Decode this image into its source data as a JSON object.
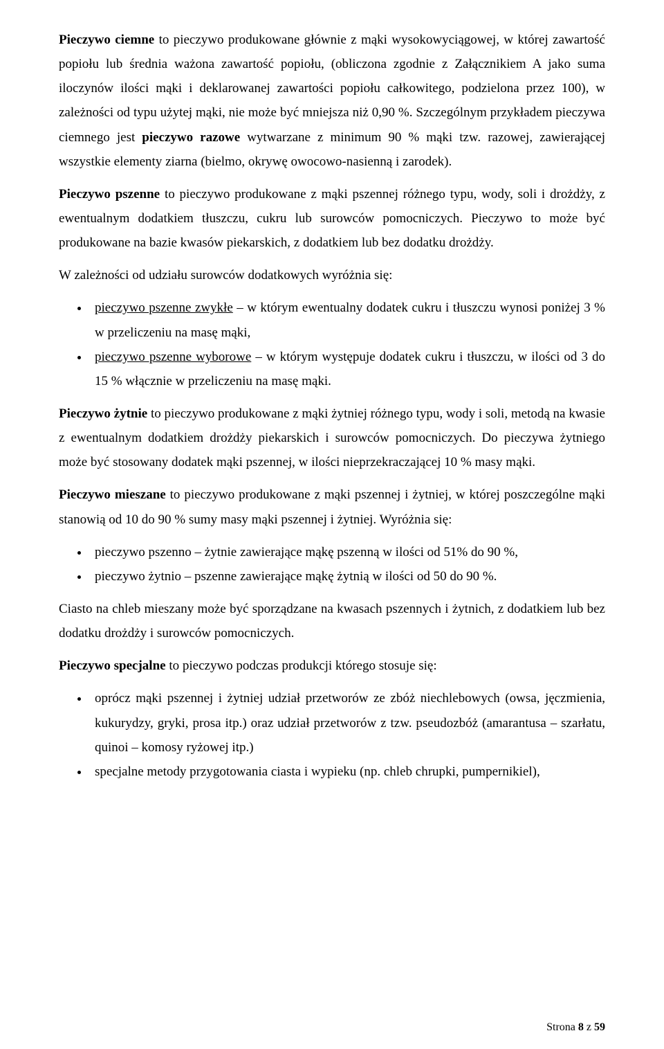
{
  "paragraphs": {
    "p1_a": "Pieczywo ciemne",
    "p1_b": " to pieczywo produkowane głównie z mąki wysokowyciągowej, w której zawartość popiołu lub średnia ważona zawartość popiołu, (obliczona zgodnie z Załącznikiem A jako suma iloczynów ilości mąki i deklarowanej zawartości popiołu całkowitego, podzielona przez 100), w zależności od typu użytej mąki, nie może być mniejsza niż 0,90 %. Szczególnym przykładem pieczywa ciemnego jest ",
    "p1_c": "pieczywo razowe",
    "p1_d": " wytwarzane z minimum 90 % mąki tzw. razowej, zawierającej wszystkie elementy ziarna (bielmo, okrywę owocowo-nasienną i zarodek).",
    "p2_a": "Pieczywo pszenne",
    "p2_b": " to pieczywo produkowane z mąki pszennej różnego typu, wody, soli i drożdży, z ewentualnym dodatkiem tłuszczu, cukru lub surowców pomocniczych. Pieczywo to może być produkowane na bazie kwasów piekarskich, z dodatkiem lub bez dodatku drożdży.",
    "p3": "W zależności od udziału surowców dodatkowych wyróżnia się:",
    "li1_a": "pieczywo pszenne zwykłe",
    "li1_b": " – w którym ewentualny dodatek cukru i tłuszczu wynosi poniżej 3 % w przeliczeniu na masę mąki,",
    "li2_a": "pieczywo pszenne wyborowe",
    "li2_b": " – w którym występuje dodatek cukru i tłuszczu, w ilości od 3 do 15 % włącznie w przeliczeniu na masę mąki.",
    "p4_a": "Pieczywo żytnie",
    "p4_b": " to pieczywo produkowane z mąki żytniej różnego typu, wody i soli, metodą na kwasie z ewentualnym dodatkiem drożdży piekarskich i surowców pomocniczych. Do pieczywa żytniego może być stosowany dodatek mąki pszennej, w ilości nieprzekraczającej 10 % masy mąki.",
    "p5_a": "Pieczywo mieszane",
    "p5_b": " to pieczywo produkowane z mąki pszennej i żytniej, w której poszczególne mąki stanowią od 10 do 90 % sumy masy mąki pszennej i żytniej. Wyróżnia się:",
    "li3": "pieczywo pszenno – żytnie zawierające mąkę pszenną w ilości od 51% do 90 %,",
    "li4": "pieczywo żytnio – pszenne zawierające mąkę żytnią w ilości od 50 do 90 %.",
    "p6": "Ciasto na chleb mieszany może być sporządzane na kwasach pszennych i żytnich, z dodatkiem lub bez dodatku drożdży i surowców pomocniczych.",
    "p7_a": "Pieczywo specjalne",
    "p7_b": " to pieczywo podczas produkcji którego stosuje się:",
    "li5": "oprócz mąki pszennej i żytniej udział przetworów ze zbóż niechlebowych (owsa, jęczmienia, kukurydzy, gryki, prosa itp.) oraz udział przetworów z tzw. pseudozbóż (amarantusa – szarłatu, quinoi – komosy ryżowej itp.)",
    "li6": "specjalne metody przygotowania ciasta i wypieku (np. chleb chrupki, pumpernikiel),"
  },
  "footer": {
    "label": "Strona ",
    "page": "8",
    "of": " z ",
    "total": "59"
  }
}
